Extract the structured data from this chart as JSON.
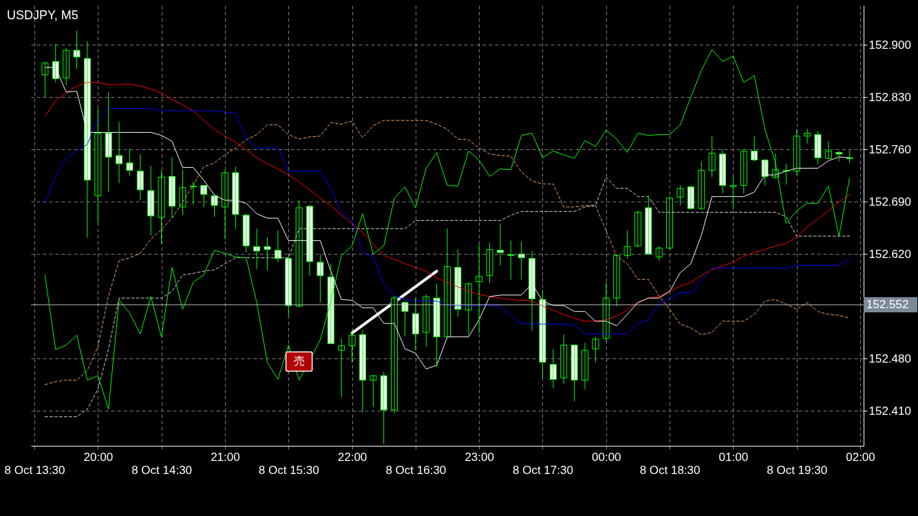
{
  "chart_data": {
    "type": "candlestick",
    "title": "USDJPY, M5",
    "x": [
      "--10-08T13:35",
      "--10-08T13:40",
      "--10-08T13:45",
      "--10-08T13:50",
      "--10-08T13:55",
      "--10-08T14:00",
      "--10-08T14:05",
      "--10-08T14:10",
      "--10-08T14:15",
      "--10-08T14:20",
      "--10-08T14:25",
      "--10-08T14:30",
      "--10-08T14:35",
      "--10-08T14:40",
      "--10-08T14:45",
      "--10-08T14:50",
      "--10-08T14:55",
      "--10-08T15:00",
      "--10-08T15:05",
      "--10-08T15:10",
      "--10-08T15:15",
      "--10-08T15:20",
      "--10-08T15:25",
      "--10-08T15:30",
      "--10-08T15:35",
      "--10-08T15:40",
      "--10-08T15:45",
      "--10-08T15:50",
      "--10-08T15:55",
      "--10-08T16:00",
      "--10-08T16:05",
      "--10-08T16:10",
      "--10-08T16:15",
      "--10-08T16:20",
      "--10-08T16:25",
      "--10-08T16:30",
      "--10-08T16:35",
      "--10-08T16:40",
      "--10-08T16:45",
      "--10-08T16:50",
      "--10-08T16:55",
      "--10-08T17:00",
      "--10-08T17:05",
      "--10-08T17:10",
      "--10-08T17:15",
      "--10-08T17:20",
      "--10-08T17:25",
      "--10-08T17:30",
      "--10-08T17:35",
      "--10-08T17:40",
      "--10-08T17:45",
      "--10-08T17:50",
      "--10-08T17:55",
      "--10-08T18:00",
      "--10-08T18:05",
      "--10-08T18:10",
      "--10-08T18:15",
      "--10-08T18:20",
      "--10-08T18:25",
      "--10-08T18:30",
      "--10-08T18:35",
      "--10-08T18:40",
      "--10-08T18:45",
      "--10-08T18:50",
      "--10-08T18:55",
      "--10-08T19:00",
      "--10-08T19:05",
      "--10-08T19:10",
      "--10-08T19:15",
      "--10-08T19:20",
      "--10-08T19:25",
      "--10-08T19:30",
      "--10-08T19:35",
      "--10-08T19:40",
      "--10-08T19:45",
      "--10-08T19:50",
      "--10-08T19:55"
    ],
    "ohlc": [
      [
        152.86,
        152.877,
        152.83,
        152.876
      ],
      [
        152.878,
        152.902,
        152.85,
        152.855
      ],
      [
        152.856,
        152.896,
        152.846,
        152.893
      ],
      [
        152.893,
        152.919,
        152.868,
        152.884
      ],
      [
        152.882,
        152.905,
        152.642,
        152.719
      ],
      [
        152.698,
        152.815,
        152.661,
        152.782
      ],
      [
        152.782,
        152.837,
        152.703,
        152.75
      ],
      [
        152.752,
        152.797,
        152.715,
        152.741
      ],
      [
        152.742,
        152.761,
        152.725,
        152.732
      ],
      [
        152.731,
        152.754,
        152.692,
        152.706
      ],
      [
        152.705,
        152.738,
        152.645,
        152.671
      ],
      [
        152.669,
        152.732,
        152.634,
        152.723
      ],
      [
        152.724,
        152.75,
        152.668,
        152.684
      ],
      [
        152.683,
        152.733,
        152.672,
        152.709
      ],
      [
        152.71,
        152.717,
        152.686,
        152.711
      ],
      [
        152.712,
        152.712,
        152.683,
        152.7
      ],
      [
        152.698,
        152.701,
        152.67,
        152.685
      ],
      [
        152.683,
        152.733,
        152.64,
        152.729
      ],
      [
        152.729,
        152.737,
        152.654,
        152.673
      ],
      [
        152.672,
        152.674,
        152.622,
        152.631
      ],
      [
        152.63,
        152.654,
        152.6,
        152.624
      ],
      [
        152.63,
        152.642,
        152.598,
        152.626
      ],
      [
        152.625,
        152.652,
        152.609,
        152.614
      ],
      [
        152.614,
        152.616,
        152.537,
        152.551
      ],
      [
        152.55,
        152.692,
        152.549,
        152.682
      ],
      [
        152.684,
        152.686,
        152.591,
        152.61
      ],
      [
        152.609,
        152.62,
        152.555,
        152.591
      ],
      [
        152.589,
        152.607,
        152.499,
        152.5
      ],
      [
        152.491,
        152.507,
        152.428,
        152.497
      ],
      [
        152.497,
        152.518,
        152.475,
        152.511
      ],
      [
        152.512,
        152.518,
        152.408,
        152.451
      ],
      [
        152.451,
        152.458,
        152.415,
        152.457
      ],
      [
        152.457,
        152.462,
        152.365,
        152.411
      ],
      [
        152.411,
        152.564,
        152.406,
        152.561
      ],
      [
        152.555,
        152.557,
        152.51,
        152.543
      ],
      [
        152.54,
        152.561,
        152.491,
        152.513
      ],
      [
        152.515,
        152.566,
        152.496,
        152.563
      ],
      [
        152.561,
        152.58,
        152.469,
        152.509
      ],
      [
        152.509,
        152.654,
        152.509,
        152.603
      ],
      [
        152.602,
        152.626,
        152.536,
        152.546
      ],
      [
        152.545,
        152.582,
        152.512,
        152.58
      ],
      [
        152.583,
        152.633,
        152.514,
        152.59
      ],
      [
        152.591,
        152.635,
        152.581,
        152.626
      ],
      [
        152.625,
        152.661,
        152.605,
        152.622
      ],
      [
        152.619,
        152.638,
        152.586,
        152.618
      ],
      [
        152.62,
        152.637,
        152.586,
        152.615
      ],
      [
        152.614,
        152.624,
        152.517,
        152.56
      ],
      [
        152.559,
        152.572,
        152.453,
        152.475
      ],
      [
        152.472,
        152.493,
        152.44,
        152.452
      ],
      [
        152.454,
        152.512,
        152.446,
        152.498
      ],
      [
        152.498,
        152.499,
        152.423,
        152.451
      ],
      [
        152.451,
        152.501,
        152.439,
        152.491
      ],
      [
        152.493,
        152.509,
        152.475,
        152.506
      ],
      [
        152.507,
        152.582,
        152.503,
        152.561
      ],
      [
        152.561,
        152.619,
        152.55,
        152.618
      ],
      [
        152.618,
        152.652,
        152.614,
        152.63
      ],
      [
        152.631,
        152.678,
        152.629,
        152.676
      ],
      [
        152.682,
        152.698,
        152.619,
        152.62
      ],
      [
        152.616,
        152.63,
        152.611,
        152.628
      ],
      [
        152.628,
        152.697,
        152.626,
        152.695
      ],
      [
        152.696,
        152.712,
        152.685,
        152.708
      ],
      [
        152.71,
        152.712,
        152.68,
        152.681
      ],
      [
        152.681,
        152.744,
        152.679,
        152.732
      ],
      [
        152.732,
        152.778,
        152.723,
        152.755
      ],
      [
        152.754,
        152.76,
        152.701,
        152.712
      ],
      [
        152.71,
        152.724,
        152.68,
        152.712
      ],
      [
        152.712,
        152.759,
        152.701,
        152.758
      ],
      [
        152.758,
        152.778,
        152.744,
        152.746
      ],
      [
        152.746,
        152.747,
        152.712,
        152.724
      ],
      [
        152.723,
        152.755,
        152.721,
        152.733
      ],
      [
        152.731,
        152.741,
        152.713,
        152.732
      ],
      [
        152.731,
        152.787,
        152.726,
        152.778
      ],
      [
        152.778,
        152.788,
        152.768,
        152.782
      ],
      [
        152.78,
        152.785,
        152.741,
        152.749
      ],
      [
        152.748,
        152.771,
        152.747,
        152.758
      ],
      [
        152.756,
        152.758,
        152.744,
        152.754
      ],
      [
        152.749,
        152.759,
        152.742,
        152.748
      ]
    ],
    "series": [
      {
        "type": "line",
        "color": "#f4a460",
        "line_style": "dashed",
        "values": [
          152.445,
          152.449,
          152.451,
          152.451,
          152.464,
          152.496,
          152.564,
          152.611,
          152.615,
          152.621,
          152.64,
          152.653,
          152.668,
          152.69,
          152.712,
          152.737,
          152.742,
          152.753,
          152.762,
          152.773,
          152.78,
          152.793,
          152.793,
          152.78,
          152.774,
          152.777,
          152.778,
          152.796,
          152.794,
          152.798,
          152.776,
          152.792,
          152.799,
          152.799,
          152.799,
          152.799,
          152.799,
          152.794,
          152.787,
          152.774,
          152.773,
          152.762,
          152.754,
          152.752,
          152.751,
          152.73,
          152.718,
          152.714,
          152.714,
          152.683,
          152.683,
          152.685,
          152.685,
          152.651,
          152.617,
          152.607,
          152.586,
          152.586,
          152.564,
          152.546,
          152.526,
          152.521,
          152.512,
          152.515,
          152.53,
          152.53,
          152.53,
          152.539,
          152.557,
          152.559,
          152.553,
          152.546,
          152.555,
          152.543,
          152.539,
          152.538,
          152.534
        ]
      },
      {
        "type": "line",
        "color": "#d3d3d3",
        "line_style": "dashed",
        "values": [
          152.402,
          152.402,
          152.402,
          152.402,
          152.412,
          152.439,
          152.493,
          152.561,
          152.561,
          152.561,
          152.561,
          152.561,
          152.57,
          152.592,
          152.594,
          152.597,
          152.599,
          152.607,
          152.615,
          152.615,
          152.615,
          152.615,
          152.615,
          152.615,
          152.654,
          152.654,
          152.654,
          152.654,
          152.654,
          152.654,
          152.654,
          152.654,
          152.654,
          152.654,
          152.654,
          152.665,
          152.665,
          152.665,
          152.665,
          152.665,
          152.665,
          152.665,
          152.665,
          152.665,
          152.672,
          152.677,
          152.677,
          152.677,
          152.677,
          152.677,
          152.677,
          152.683,
          152.685,
          152.723,
          152.708,
          152.708,
          152.697,
          152.697,
          152.676,
          152.676,
          152.676,
          152.676,
          152.676,
          152.676,
          152.676,
          152.676,
          152.676,
          152.676,
          152.676,
          152.676,
          152.67,
          152.644,
          152.644,
          152.644,
          152.644,
          152.644,
          152.644
        ]
      },
      {
        "type": "line",
        "color": "#ff0000",
        "values": [
          152.805,
          152.825,
          152.836,
          152.845,
          152.85,
          152.85,
          152.847,
          152.847,
          152.848,
          152.845,
          152.841,
          152.836,
          152.827,
          152.82,
          152.812,
          152.799,
          152.787,
          152.778,
          152.77,
          152.76,
          152.749,
          152.741,
          152.734,
          152.726,
          152.717,
          152.706,
          152.695,
          152.685,
          152.672,
          152.661,
          152.649,
          152.634,
          152.618,
          152.613,
          152.607,
          152.602,
          152.597,
          152.588,
          152.582,
          152.576,
          152.57,
          152.566,
          152.563,
          152.561,
          152.559,
          152.558,
          152.557,
          152.55,
          152.545,
          152.539,
          152.534,
          152.53,
          152.53,
          152.532,
          152.537,
          152.545,
          152.555,
          152.561,
          152.563,
          152.57,
          152.577,
          152.582,
          152.591,
          152.599,
          152.604,
          152.609,
          152.617,
          152.622,
          152.626,
          152.631,
          152.634,
          152.643,
          152.656,
          152.667,
          152.678,
          152.69,
          152.7
        ]
      },
      {
        "type": "line",
        "color": "#0000ff",
        "values": [
          152.688,
          152.724,
          152.749,
          152.758,
          152.767,
          152.801,
          152.815,
          152.815,
          152.815,
          152.815,
          152.815,
          152.812,
          152.812,
          152.812,
          152.812,
          152.812,
          152.812,
          152.81,
          152.809,
          152.774,
          152.762,
          152.762,
          152.762,
          152.731,
          152.731,
          152.731,
          152.731,
          152.708,
          152.676,
          152.665,
          152.622,
          152.616,
          152.58,
          152.564,
          152.559,
          152.557,
          152.557,
          152.557,
          152.551,
          152.551,
          152.551,
          152.551,
          152.551,
          152.55,
          152.537,
          152.527,
          152.527,
          152.526,
          152.526,
          152.526,
          152.525,
          152.513,
          152.513,
          152.513,
          152.513,
          152.513,
          152.527,
          152.532,
          152.553,
          152.561,
          152.568,
          152.568,
          152.584,
          152.601,
          152.601,
          152.601,
          152.601,
          152.601,
          152.601,
          152.601,
          152.601,
          152.605,
          152.605,
          152.605,
          152.605,
          152.605,
          152.613
        ]
      },
      {
        "type": "line",
        "color": "#ffffff",
        "values": [
          152.87,
          152.87,
          152.837,
          152.838,
          152.783,
          152.783,
          152.783,
          152.783,
          152.783,
          152.783,
          152.783,
          152.779,
          152.771,
          152.736,
          152.736,
          152.719,
          152.699,
          152.692,
          152.692,
          152.688,
          152.674,
          152.668,
          152.668,
          152.638,
          152.638,
          152.638,
          152.638,
          152.597,
          152.559,
          152.558,
          152.548,
          152.548,
          152.527,
          152.527,
          152.493,
          152.487,
          152.466,
          152.471,
          152.509,
          152.509,
          152.509,
          152.532,
          152.563,
          152.565,
          152.565,
          152.565,
          152.58,
          152.557,
          152.551,
          152.551,
          152.543,
          152.543,
          152.53,
          152.53,
          152.524,
          152.539,
          152.555,
          152.561,
          152.561,
          152.57,
          152.595,
          152.607,
          152.645,
          152.697,
          152.697,
          152.697,
          152.697,
          152.703,
          152.726,
          152.726,
          152.731,
          152.735,
          152.735,
          152.735,
          152.745,
          152.75,
          152.749
        ]
      },
      {
        "type": "line",
        "color": "#00ff00",
        "values": [
          152.592,
          152.492,
          152.498,
          152.511,
          152.451,
          152.457,
          152.412,
          152.558,
          152.541,
          152.513,
          152.563,
          152.509,
          152.602,
          152.546,
          152.582,
          152.592,
          152.625,
          152.621,
          152.616,
          152.615,
          152.555,
          152.475,
          152.452,
          152.498,
          152.451,
          null,
          152.505,
          152.557,
          152.618,
          152.631,
          152.674,
          152.62,
          152.631,
          152.695,
          152.71,
          152.682,
          152.735,
          152.756,
          152.712,
          152.711,
          152.758,
          152.746,
          152.724,
          152.734,
          152.733,
          152.779,
          152.782,
          152.749,
          152.758,
          152.753,
          152.748,
          152.772,
          152.764,
          152.786,
          152.774,
          152.756,
          152.782,
          152.779,
          152.78,
          152.78,
          152.793,
          152.83,
          152.866,
          152.894,
          152.878,
          152.885,
          152.85,
          152.859,
          152.787,
          152.742,
          152.661,
          152.678,
          152.688,
          152.688,
          152.711,
          152.644,
          152.722
        ]
      },
      {
        "type": "line",
        "color": "#ffffff",
        "x": [
          "--10-08T16:00",
          "--10-08T16:40"
        ],
        "values": [
          152.514,
          152.597
        ]
      }
    ],
    "xlim": [
      "--10-08T13:30",
      "--10-08T20:00"
    ],
    "xticks": [
      {
        "value": "--10-08T13:30",
        "label": "8 Oct 13:30"
      },
      {
        "value": "--10-08T14:30",
        "label": "8 Oct 14:30"
      },
      {
        "value": "--10-08T15:30",
        "label": "8 Oct 15:30"
      },
      {
        "value": "--10-08T16:30",
        "label": "8 Oct 16:30"
      },
      {
        "value": "--10-08T17:30",
        "label": "8 Oct 17:30"
      },
      {
        "value": "--10-08T18:30",
        "label": "8 Oct 18:30"
      },
      {
        "value": "--10-08T19:30",
        "label": "8 Oct 19:30"
      }
    ],
    "x2lim": [
      "--10-08T19:30",
      "--10-09T02:00"
    ],
    "x2ticks": [
      {
        "value": "--10-08T20:00",
        "label": "20:00"
      },
      {
        "value": "--10-08T21:00",
        "label": "21:00"
      },
      {
        "value": "--10-08T22:00",
        "label": "22:00"
      },
      {
        "value": "--10-08T23:00",
        "label": "23:00"
      },
      {
        "value": "--10-09T00:00",
        "label": "00:00"
      },
      {
        "value": "--10-09T01:00",
        "label": "01:00"
      },
      {
        "value": "--10-09T02:00",
        "label": "02:00"
      }
    ],
    "ylim": [
      152.363,
      152.953
    ],
    "yticks": [
      {
        "value": 152.41,
        "label": "152.410"
      },
      {
        "value": 152.48,
        "label": "152.480"
      },
      {
        "value": 152.62,
        "label": "152.620"
      },
      {
        "value": 152.69,
        "label": "152.690"
      },
      {
        "value": 152.76,
        "label": "152.760"
      },
      {
        "value": 152.83,
        "label": "152.830"
      },
      {
        "value": 152.9,
        "label": "152.900"
      }
    ],
    "ref_lines": [
      {
        "axis": "y",
        "value": 152.552,
        "label": "152.552",
        "color": "#c0c0c0"
      }
    ],
    "annotations": [
      {
        "text": "売",
        "x": "--10-08T15:35",
        "y": 152.476
      }
    ],
    "grid": true
  }
}
